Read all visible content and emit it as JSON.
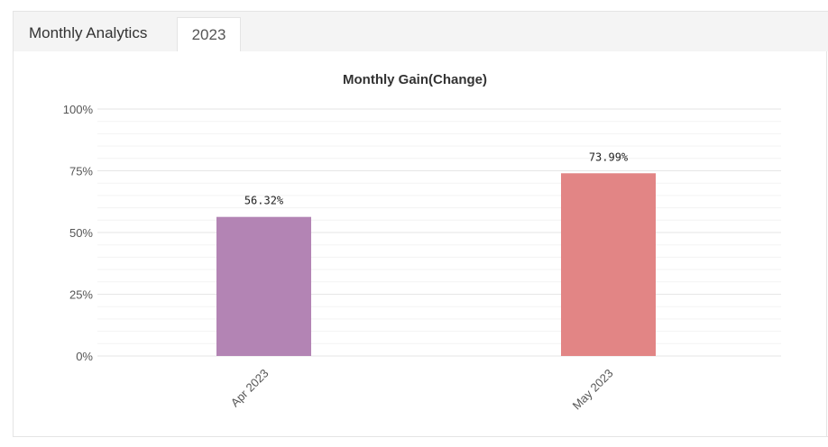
{
  "tabs": {
    "title": "Monthly Analytics",
    "year": "2023"
  },
  "colors": {
    "bar_apr": "#b384b4",
    "bar_may": "#e28585",
    "grid": "#e6e6e6",
    "minor_grid": "#f3f3f3"
  },
  "chart_data": {
    "type": "bar",
    "title": "Monthly Gain(Change)",
    "categories": [
      "Apr 2023",
      "May 2023"
    ],
    "values": [
      56.32,
      73.99
    ],
    "data_labels": [
      "56.32%",
      "73.99%"
    ],
    "bar_colors": [
      "#b384b4",
      "#e28585"
    ],
    "ylim": [
      0,
      100
    ],
    "y_ticks": [
      0,
      25,
      50,
      75,
      100
    ],
    "y_tick_labels": [
      "0%",
      "25%",
      "50%",
      "75%",
      "100%"
    ],
    "xlabel": "",
    "ylabel": "",
    "grid": true,
    "legend": false
  }
}
